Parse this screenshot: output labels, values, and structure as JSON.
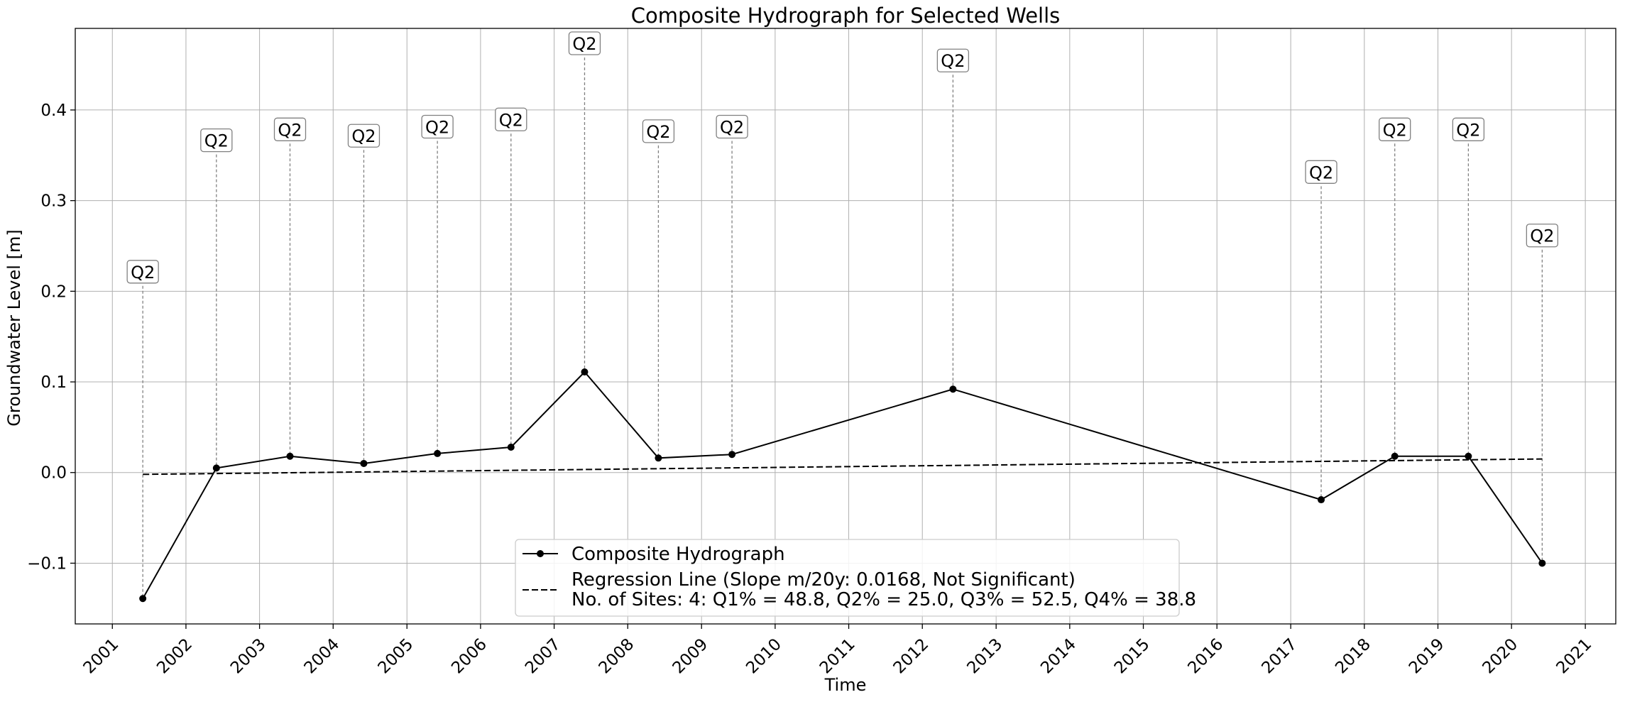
{
  "chart_data": {
    "type": "line",
    "title": "Composite Hydrograph for Selected Wells",
    "xlabel": "Time",
    "ylabel": "Groundwater Level [m]",
    "xlim": [
      "2000-07-01",
      "2021-06-01"
    ],
    "ylim": [
      -0.167,
      0.49
    ],
    "grid": true,
    "legend_position": "bottom-center",
    "x_ticks": [
      "2001",
      "2002",
      "2003",
      "2004",
      "2005",
      "2006",
      "2007",
      "2008",
      "2009",
      "2010",
      "2011",
      "2012",
      "2013",
      "2014",
      "2015",
      "2016",
      "2017",
      "2018",
      "2019",
      "2020",
      "2021"
    ],
    "y_ticks": [
      -0.1,
      0.0,
      0.1,
      0.2,
      0.3,
      0.4
    ],
    "series": [
      {
        "name": "Composite Hydrograph",
        "color": "#000000",
        "style": "solid",
        "marker": "circle",
        "points": [
          {
            "x": "2001-06-01",
            "y": -0.139
          },
          {
            "x": "2002-06-01",
            "y": 0.005
          },
          {
            "x": "2003-06-01",
            "y": 0.018
          },
          {
            "x": "2004-06-01",
            "y": 0.01
          },
          {
            "x": "2005-06-01",
            "y": 0.021
          },
          {
            "x": "2006-06-01",
            "y": 0.028
          },
          {
            "x": "2007-06-01",
            "y": 0.111
          },
          {
            "x": "2008-06-01",
            "y": 0.016
          },
          {
            "x": "2009-06-01",
            "y": 0.02
          },
          {
            "x": "2012-06-01",
            "y": 0.092
          },
          {
            "x": "2017-06-01",
            "y": -0.03
          },
          {
            "x": "2018-06-01",
            "y": 0.018
          },
          {
            "x": "2019-06-01",
            "y": 0.018
          },
          {
            "x": "2020-06-01",
            "y": -0.1
          }
        ]
      },
      {
        "name": "Regression Line (Slope m/20y: 0.0168, Not Significant)",
        "color": "#000000",
        "style": "dashed",
        "points": [
          {
            "x": "2001-06-01",
            "y": -0.002
          },
          {
            "x": "2020-06-01",
            "y": 0.015
          }
        ]
      }
    ],
    "legend_note": "No. of Sites: 4: Q1% = 48.8, Q2% = 25.0, Q3% = 52.5, Q4% = 38.8",
    "annotations": [
      {
        "label": "Q2",
        "x": "2001-06-01",
        "y": 0.22
      },
      {
        "label": "Q2",
        "x": "2002-06-01",
        "y": 0.365
      },
      {
        "label": "Q2",
        "x": "2003-06-01",
        "y": 0.377
      },
      {
        "label": "Q2",
        "x": "2004-06-01",
        "y": 0.37
      },
      {
        "label": "Q2",
        "x": "2005-06-01",
        "y": 0.38
      },
      {
        "label": "Q2",
        "x": "2006-06-01",
        "y": 0.388
      },
      {
        "label": "Q2",
        "x": "2007-06-01",
        "y": 0.472
      },
      {
        "label": "Q2",
        "x": "2008-06-01",
        "y": 0.375
      },
      {
        "label": "Q2",
        "x": "2009-06-01",
        "y": 0.38
      },
      {
        "label": "Q2",
        "x": "2012-06-01",
        "y": 0.453
      },
      {
        "label": "Q2",
        "x": "2017-06-01",
        "y": 0.33
      },
      {
        "label": "Q2",
        "x": "2018-06-01",
        "y": 0.377
      },
      {
        "label": "Q2",
        "x": "2019-06-01",
        "y": 0.377
      },
      {
        "label": "Q2",
        "x": "2020-06-01",
        "y": 0.26
      }
    ]
  }
}
